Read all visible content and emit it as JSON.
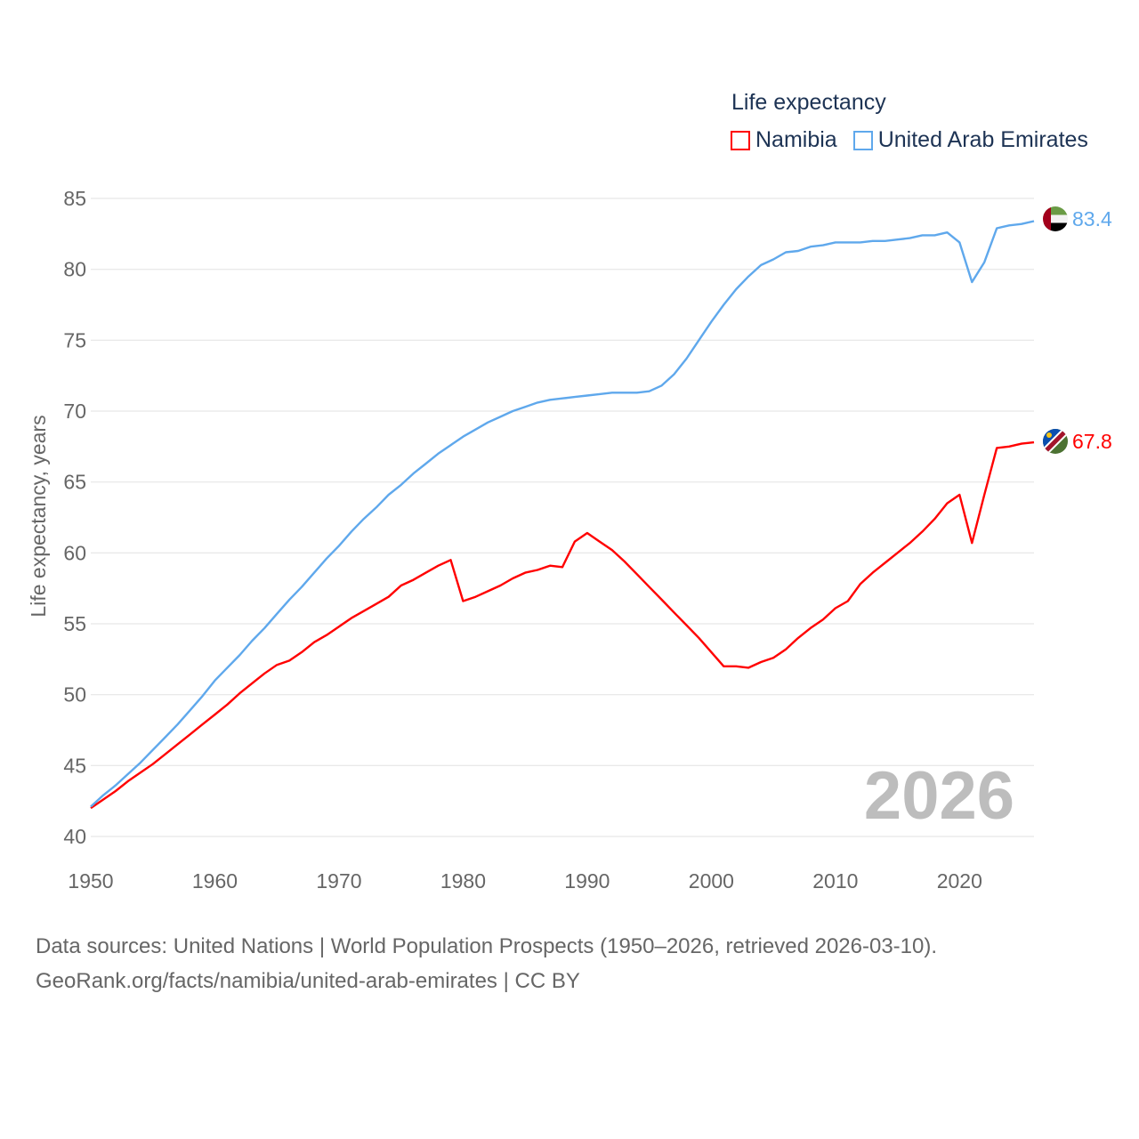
{
  "chart_data": {
    "type": "line",
    "title": "Life expectancy",
    "ylabel": "Life expectancy, years",
    "xlabel": "",
    "xlim": [
      1950,
      2026
    ],
    "ylim": [
      40,
      85
    ],
    "xticks": [
      1950,
      1960,
      1970,
      1980,
      1990,
      2000,
      2010,
      2020
    ],
    "yticks": [
      40,
      45,
      50,
      55,
      60,
      65,
      70,
      75,
      80,
      85
    ],
    "grid": true,
    "legend_position": "top-right",
    "year_watermark": "2026",
    "x_start": 1950,
    "series": [
      {
        "name": "Namibia",
        "color": "#ff0000",
        "end_label": "67.8",
        "values": [
          42.0,
          42.6,
          43.2,
          43.9,
          44.5,
          45.1,
          45.8,
          46.5,
          47.2,
          47.9,
          48.6,
          49.3,
          50.1,
          50.8,
          51.5,
          52.1,
          52.4,
          53.0,
          53.7,
          54.2,
          54.8,
          55.4,
          55.9,
          56.4,
          56.9,
          57.7,
          58.1,
          58.6,
          59.1,
          59.5,
          56.6,
          56.9,
          57.3,
          57.7,
          58.2,
          58.6,
          58.8,
          59.1,
          59.0,
          60.8,
          61.4,
          60.8,
          60.2,
          59.4,
          58.5,
          57.6,
          56.7,
          55.8,
          54.9,
          54.0,
          53.0,
          52.0,
          52.0,
          51.9,
          52.3,
          52.6,
          53.2,
          54.0,
          54.7,
          55.3,
          56.1,
          56.6,
          57.8,
          58.6,
          59.3,
          60.0,
          60.7,
          61.5,
          62.4,
          63.5,
          64.1,
          60.7,
          64.1,
          67.4,
          67.5,
          67.7,
          67.8
        ]
      },
      {
        "name": "United Arab Emirates",
        "color": "#5fa8ec",
        "end_label": "83.4",
        "values": [
          42.1,
          42.9,
          43.6,
          44.4,
          45.2,
          46.1,
          47.0,
          47.9,
          48.9,
          49.9,
          51.0,
          51.9,
          52.8,
          53.8,
          54.7,
          55.7,
          56.7,
          57.6,
          58.6,
          59.6,
          60.5,
          61.5,
          62.4,
          63.2,
          64.1,
          64.8,
          65.6,
          66.3,
          67.0,
          67.6,
          68.2,
          68.7,
          69.2,
          69.6,
          70.0,
          70.3,
          70.6,
          70.8,
          70.9,
          71.0,
          71.1,
          71.2,
          71.3,
          71.3,
          71.3,
          71.4,
          71.8,
          72.6,
          73.7,
          75.0,
          76.3,
          77.5,
          78.6,
          79.5,
          80.3,
          80.7,
          81.2,
          81.3,
          81.6,
          81.7,
          81.9,
          81.9,
          81.9,
          82.0,
          82.0,
          82.1,
          82.2,
          82.4,
          82.4,
          82.6,
          81.9,
          79.1,
          80.5,
          82.9,
          83.1,
          83.2,
          83.4
        ]
      }
    ]
  },
  "legend": {
    "title": "Life expectancy",
    "items": [
      {
        "label": "Namibia",
        "color": "#ff0000"
      },
      {
        "label": "United Arab Emirates",
        "color": "#5fa8ec"
      }
    ]
  },
  "footer": {
    "line1": "Data sources: United Nations | World Population Prospects (1950–2026, retrieved 2026-03-10).",
    "line2": "GeoRank.org/facts/namibia/united-arab-emirates | CC BY"
  }
}
